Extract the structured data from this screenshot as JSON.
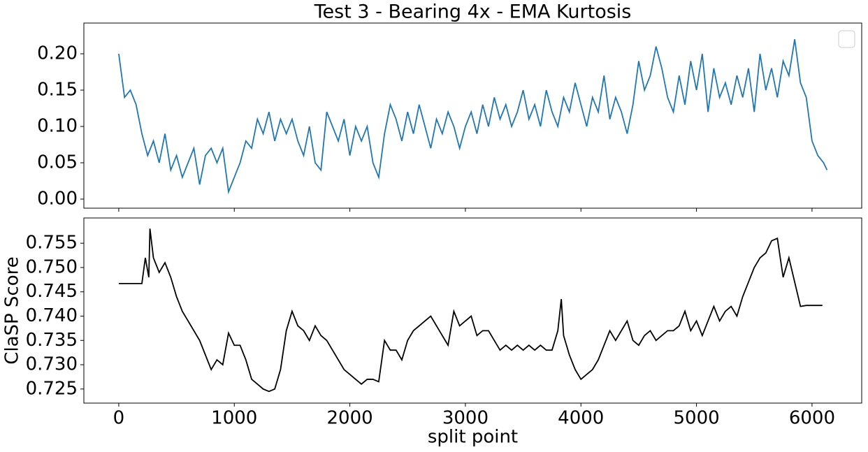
{
  "chart_data": [
    {
      "type": "line",
      "title": "Test 3 - Bearing 4x - EMA Kurtosis",
      "x": [
        0,
        50,
        100,
        150,
        200,
        250,
        300,
        350,
        400,
        450,
        500,
        550,
        600,
        650,
        700,
        750,
        800,
        850,
        900,
        950,
        1000,
        1050,
        1100,
        1150,
        1200,
        1250,
        1300,
        1350,
        1400,
        1450,
        1500,
        1550,
        1600,
        1650,
        1700,
        1750,
        1800,
        1850,
        1900,
        1950,
        2000,
        2050,
        2100,
        2150,
        2200,
        2250,
        2300,
        2350,
        2400,
        2450,
        2500,
        2550,
        2600,
        2650,
        2700,
        2750,
        2800,
        2850,
        2900,
        2950,
        3000,
        3050,
        3100,
        3150,
        3200,
        3250,
        3300,
        3350,
        3400,
        3450,
        3500,
        3550,
        3600,
        3650,
        3700,
        3750,
        3800,
        3850,
        3900,
        3950,
        4000,
        4050,
        4100,
        4150,
        4200,
        4250,
        4300,
        4350,
        4400,
        4450,
        4500,
        4550,
        4600,
        4650,
        4700,
        4750,
        4800,
        4850,
        4900,
        4950,
        5000,
        5050,
        5100,
        5150,
        5200,
        5250,
        5300,
        5350,
        5400,
        5450,
        5500,
        5550,
        5600,
        5650,
        5700,
        5750,
        5800,
        5850,
        5900,
        5950,
        6000,
        6050,
        6100,
        6130
      ],
      "series": [
        {
          "color": "#1f77b4",
          "values": [
            0.2,
            0.14,
            0.15,
            0.13,
            0.09,
            0.06,
            0.08,
            0.05,
            0.09,
            0.04,
            0.06,
            0.03,
            0.05,
            0.07,
            0.02,
            0.06,
            0.07,
            0.05,
            0.07,
            0.01,
            0.03,
            0.05,
            0.08,
            0.07,
            0.11,
            0.09,
            0.12,
            0.08,
            0.11,
            0.09,
            0.11,
            0.08,
            0.06,
            0.1,
            0.05,
            0.04,
            0.12,
            0.1,
            0.08,
            0.11,
            0.06,
            0.1,
            0.08,
            0.1,
            0.05,
            0.03,
            0.09,
            0.13,
            0.11,
            0.08,
            0.12,
            0.09,
            0.13,
            0.1,
            0.07,
            0.11,
            0.09,
            0.12,
            0.1,
            0.07,
            0.1,
            0.12,
            0.09,
            0.13,
            0.1,
            0.14,
            0.11,
            0.13,
            0.1,
            0.12,
            0.15,
            0.11,
            0.13,
            0.1,
            0.15,
            0.12,
            0.1,
            0.14,
            0.12,
            0.16,
            0.13,
            0.1,
            0.14,
            0.12,
            0.17,
            0.11,
            0.14,
            0.12,
            0.09,
            0.13,
            0.19,
            0.15,
            0.17,
            0.21,
            0.18,
            0.14,
            0.12,
            0.17,
            0.13,
            0.19,
            0.15,
            0.2,
            0.12,
            0.18,
            0.14,
            0.16,
            0.13,
            0.17,
            0.14,
            0.18,
            0.12,
            0.2,
            0.15,
            0.18,
            0.14,
            0.19,
            0.17,
            0.22,
            0.16,
            0.14,
            0.08,
            0.06,
            0.05,
            0.04
          ]
        }
      ],
      "xlim": [
        -302,
        6430
      ],
      "xticks": [
        0,
        1000,
        2000,
        3000,
        4000,
        5000,
        6000
      ],
      "show_xtick_labels": false,
      "ylim": [
        -0.0125,
        0.2423
      ],
      "yticks": [
        {
          "value": 0,
          "label": "0.00"
        },
        0.05,
        {
          "value": 0.1,
          "label": "0.10"
        },
        0.15,
        {
          "value": 0.2,
          "label": "0.20"
        }
      ],
      "legend": "upper right"
    },
    {
      "type": "line",
      "xlabel": "split point",
      "ylabel": "ClaSP Score",
      "x": [
        0,
        100,
        200,
        230,
        260,
        270,
        300,
        350,
        400,
        450,
        500,
        550,
        600,
        650,
        700,
        750,
        800,
        850,
        900,
        950,
        1000,
        1050,
        1100,
        1150,
        1200,
        1250,
        1300,
        1350,
        1400,
        1450,
        1500,
        1550,
        1600,
        1650,
        1700,
        1750,
        1800,
        1850,
        1900,
        1950,
        2000,
        2050,
        2100,
        2150,
        2200,
        2250,
        2300,
        2350,
        2400,
        2450,
        2500,
        2550,
        2600,
        2650,
        2700,
        2750,
        2800,
        2850,
        2900,
        2950,
        3000,
        3050,
        3100,
        3150,
        3200,
        3250,
        3300,
        3350,
        3400,
        3450,
        3500,
        3550,
        3600,
        3650,
        3700,
        3750,
        3800,
        3830,
        3850,
        3900,
        3950,
        4000,
        4050,
        4100,
        4150,
        4200,
        4250,
        4300,
        4350,
        4400,
        4450,
        4500,
        4550,
        4600,
        4650,
        4700,
        4750,
        4800,
        4850,
        4900,
        4950,
        5000,
        5050,
        5100,
        5150,
        5200,
        5250,
        5300,
        5350,
        5400,
        5450,
        5500,
        5550,
        5600,
        5650,
        5700,
        5750,
        5800,
        5850,
        5900,
        5950,
        6000,
        6090
      ],
      "series": [
        {
          "color": "#000000",
          "values": [
            0.7467,
            0.7467,
            0.7467,
            0.752,
            0.748,
            0.758,
            0.752,
            0.749,
            0.751,
            0.748,
            0.744,
            0.741,
            0.739,
            0.737,
            0.735,
            0.732,
            0.729,
            0.731,
            0.73,
            0.7365,
            0.734,
            0.734,
            0.731,
            0.727,
            0.726,
            0.725,
            0.7245,
            0.725,
            0.729,
            0.737,
            0.741,
            0.738,
            0.737,
            0.735,
            0.738,
            0.736,
            0.735,
            0.733,
            0.731,
            0.729,
            0.728,
            0.727,
            0.726,
            0.727,
            0.727,
            0.7265,
            0.735,
            0.733,
            0.733,
            0.731,
            0.735,
            0.737,
            0.738,
            0.739,
            0.74,
            0.738,
            0.736,
            0.734,
            0.741,
            0.738,
            0.739,
            0.74,
            0.736,
            0.737,
            0.737,
            0.735,
            0.733,
            0.734,
            0.733,
            0.734,
            0.733,
            0.734,
            0.733,
            0.734,
            0.733,
            0.733,
            0.737,
            0.7435,
            0.736,
            0.732,
            0.729,
            0.727,
            0.728,
            0.729,
            0.731,
            0.734,
            0.737,
            0.735,
            0.737,
            0.739,
            0.735,
            0.734,
            0.736,
            0.737,
            0.735,
            0.736,
            0.737,
            0.737,
            0.738,
            0.741,
            0.737,
            0.739,
            0.736,
            0.739,
            0.742,
            0.739,
            0.741,
            0.742,
            0.74,
            0.744,
            0.747,
            0.75,
            0.752,
            0.753,
            0.7555,
            0.756,
            0.748,
            0.752,
            0.747,
            0.742,
            0.7422,
            0.7422,
            0.7422
          ]
        }
      ],
      "xlim": [
        -302,
        6430
      ],
      "xticks": [
        0,
        1000,
        2000,
        3000,
        4000,
        5000,
        6000
      ],
      "ylim": [
        0.7221,
        0.7602
      ],
      "yticks": [
        0.725,
        {
          "value": 0.73,
          "label": "0.730"
        },
        0.735,
        {
          "value": 0.74,
          "label": "0.740"
        },
        0.745,
        {
          "value": 0.75,
          "label": "0.750"
        },
        0.755
      ]
    }
  ]
}
